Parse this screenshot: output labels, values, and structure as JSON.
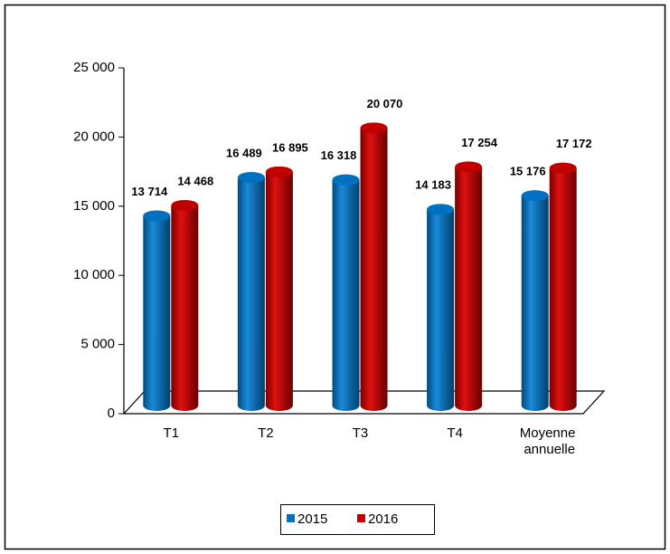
{
  "chart_data": {
    "type": "bar",
    "categories": [
      "T1",
      "T2",
      "T3",
      "T4",
      "Moyenne annuelle"
    ],
    "series": [
      {
        "name": "2015",
        "color": "#0070c0",
        "values": [
          13714,
          16489,
          16318,
          14183,
          15176
        ],
        "value_labels": [
          "13 714",
          "16 489",
          "16 318",
          "14 183",
          "15 176"
        ]
      },
      {
        "name": "2016",
        "color": "#c00000",
        "values": [
          14468,
          16895,
          20070,
          17254,
          17172
        ],
        "value_labels": [
          "14 468",
          "16 895",
          "20 070",
          "17 254",
          "17 172"
        ]
      }
    ],
    "ylim": [
      0,
      25000
    ],
    "yticks": [
      0,
      {
        "value": 5000,
        "label": "5 000"
      },
      {
        "value": 10000,
        "label": "10 000"
      },
      {
        "value": 15000,
        "label": "15 000"
      },
      {
        "value": 20000,
        "label": "20 000"
      },
      {
        "value": 25000,
        "label": "25 000"
      }
    ],
    "legend": "bottom"
  }
}
